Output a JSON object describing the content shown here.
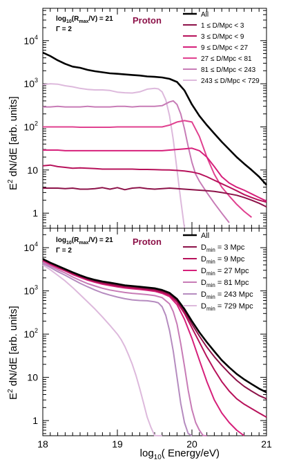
{
  "figure": {
    "xlabel_prefix": "log",
    "xlabel_sub": "10",
    "xlabel_main": "( Energy/eV)",
    "ylabel_prefix": "E",
    "ylabel_sup": "2",
    "ylabel_main": " dN/dE [arb. units]"
  },
  "chart_data": [
    {
      "type": "line",
      "title": "Proton",
      "annotation_line1_base": "log",
      "annotation_line1_sub": "10",
      "annotation_line1_rest": "(R",
      "annotation_line1_sub2": "max",
      "annotation_line1_end": "/V) = 21",
      "annotation_line2": "Γ = 2",
      "xlim": [
        18,
        21
      ],
      "ylim_log10": [
        -0.35,
        4.75
      ],
      "y_scale": "log",
      "legend_position": "top-right",
      "x_tick_labels": [
        "18",
        "19",
        "20",
        "21"
      ],
      "y_tick_labels": [
        {
          "base": "1",
          "exp": ""
        },
        {
          "base": "10",
          "exp": ""
        },
        {
          "base": "10",
          "exp": "2"
        },
        {
          "base": "10",
          "exp": "3"
        },
        {
          "base": "10",
          "exp": "4"
        }
      ],
      "series": [
        {
          "name": "All",
          "color": "#000000",
          "x": [
            18,
            18.1,
            18.2,
            18.3,
            18.4,
            18.5,
            18.6,
            18.7,
            18.8,
            18.9,
            19.0,
            19.1,
            19.2,
            19.3,
            19.4,
            19.5,
            19.6,
            19.7,
            19.8,
            19.9,
            20.0,
            20.1,
            20.2,
            20.3,
            20.4,
            20.5,
            20.6,
            20.7,
            20.8,
            20.9,
            21.0
          ],
          "y": [
            5300,
            4400,
            3500,
            2900,
            2500,
            2350,
            2100,
            1950,
            1850,
            1750,
            1700,
            1650,
            1600,
            1550,
            1480,
            1450,
            1400,
            1300,
            1100,
            700,
            330,
            180,
            110,
            70,
            45,
            30,
            20,
            14,
            10,
            7,
            4.5
          ]
        },
        {
          "name": "1 ≤ D/Mpc < 3",
          "color": "#8c1148",
          "x": [
            18,
            18.1,
            18.2,
            18.3,
            18.4,
            18.5,
            18.6,
            18.7,
            18.8,
            18.9,
            19.0,
            19.1,
            19.2,
            19.3,
            19.4,
            19.5,
            19.6,
            19.7,
            19.8,
            19.9,
            20.0,
            20.1,
            20.2,
            20.3,
            20.4,
            20.5,
            20.6,
            20.7,
            20.8,
            20.9,
            21.0
          ],
          "y": [
            3.8,
            3.8,
            3.8,
            3.7,
            3.8,
            3.6,
            3.6,
            3.7,
            3.9,
            3.6,
            3.9,
            3.5,
            3.8,
            3.9,
            3.7,
            3.6,
            3.7,
            3.8,
            3.7,
            3.6,
            3.5,
            3.4,
            3.3,
            3.2,
            3.0,
            2.8,
            2.6,
            2.3,
            2.0,
            1.7,
            1.4
          ]
        },
        {
          "name": "3 ≤ D/Mpc < 9",
          "color": "#b7115a",
          "x": [
            18,
            18.1,
            18.2,
            18.3,
            18.4,
            18.5,
            18.6,
            18.7,
            18.8,
            18.9,
            19.0,
            19.1,
            19.2,
            19.3,
            19.4,
            19.5,
            19.6,
            19.7,
            19.8,
            19.9,
            20.0,
            20.1,
            20.2,
            20.3,
            20.4,
            20.5,
            20.6,
            20.7,
            20.8,
            20.9,
            21.0
          ],
          "y": [
            12.5,
            13,
            12,
            11.5,
            11,
            11.2,
            11,
            10.8,
            10.5,
            10.5,
            10.5,
            10.5,
            10.5,
            10.3,
            10.3,
            10.2,
            10.1,
            10,
            9.8,
            9.5,
            9,
            8.2,
            7,
            5.8,
            4.8,
            4,
            3.3,
            2.7,
            2.3,
            2,
            1.8
          ]
        },
        {
          "name": "9 ≤ D/Mpc < 27",
          "color": "#d61f7a",
          "x": [
            18,
            18.1,
            18.2,
            18.3,
            18.4,
            18.5,
            18.6,
            18.7,
            18.8,
            18.9,
            19.0,
            19.1,
            19.2,
            19.3,
            19.4,
            19.5,
            19.6,
            19.7,
            19.8,
            19.9,
            20.0,
            20.1,
            20.2,
            20.3,
            20.4,
            20.5,
            20.6,
            20.7,
            20.8,
            20.9,
            21.0
          ],
          "y": [
            29,
            29,
            29,
            28,
            28,
            28,
            28,
            28,
            28,
            28,
            28,
            28,
            28,
            28,
            28,
            28,
            28,
            29,
            30,
            31,
            32,
            28,
            20,
            12,
            7,
            5,
            4,
            3.4,
            2.8,
            2.3,
            1.9
          ]
        },
        {
          "name": "27 ≤ D/Mpc < 81",
          "color": "#e0408f",
          "x": [
            18,
            18.1,
            18.2,
            18.3,
            18.4,
            18.5,
            18.6,
            18.7,
            18.8,
            18.9,
            19.0,
            19.1,
            19.2,
            19.3,
            19.4,
            19.5,
            19.6,
            19.7,
            19.8,
            19.9,
            20.0,
            20.1,
            20.2,
            20.3,
            20.4,
            20.5,
            20.6,
            20.7,
            20.8
          ],
          "y": [
            100,
            100,
            100,
            100,
            100,
            98,
            98,
            98,
            98,
            98,
            100,
            100,
            100,
            100,
            100,
            100,
            100,
            110,
            130,
            140,
            130,
            60,
            20,
            8,
            4,
            2.5,
            1.6,
            1.1,
            0.8
          ]
        },
        {
          "name": "81 ≤ D/Mpc < 243",
          "color": "#c77bb6",
          "x": [
            18,
            18.1,
            18.2,
            18.3,
            18.4,
            18.5,
            18.6,
            18.7,
            18.8,
            18.9,
            19.0,
            19.1,
            19.2,
            19.3,
            19.4,
            19.5,
            19.6,
            19.7,
            19.75,
            19.8,
            19.85,
            19.9,
            19.95,
            20.0,
            20.05,
            20.1,
            20.2,
            20.3,
            20.4,
            20.5
          ],
          "y": [
            290,
            290,
            300,
            290,
            290,
            290,
            300,
            290,
            290,
            290,
            300,
            300,
            290,
            300,
            300,
            300,
            310,
            380,
            400,
            330,
            200,
            90,
            35,
            15,
            8,
            5.5,
            3,
            1.7,
            1.0,
            0.6
          ]
        },
        {
          "name": "243 ≤ D/Mpc < 729",
          "color": "#ddb9dc",
          "x": [
            18,
            18.1,
            18.2,
            18.3,
            18.4,
            18.5,
            18.6,
            18.7,
            18.8,
            18.9,
            19.0,
            19.1,
            19.2,
            19.3,
            19.4,
            19.5,
            19.55,
            19.6,
            19.65,
            19.7,
            19.75,
            19.8,
            19.85,
            19.9
          ],
          "y": [
            950,
            1000,
            980,
            900,
            850,
            780,
            740,
            720,
            720,
            700,
            640,
            620,
            610,
            650,
            750,
            780,
            760,
            650,
            420,
            180,
            50,
            10,
            2.0,
            0.4
          ]
        }
      ]
    },
    {
      "type": "line",
      "title": "Proton",
      "annotation_line1_base": "log",
      "annotation_line1_sub": "10",
      "annotation_line1_rest": "(R",
      "annotation_line1_sub2": "max",
      "annotation_line1_end": "/V) = 21",
      "annotation_line2": "Γ = 2",
      "xlim": [
        18,
        21
      ],
      "ylim_log10": [
        -0.35,
        4.45
      ],
      "y_scale": "log",
      "legend_position": "top-right",
      "x_tick_labels": [
        "18",
        "19",
        "20",
        "21"
      ],
      "y_tick_labels": [
        {
          "base": "1",
          "exp": ""
        },
        {
          "base": "10",
          "exp": ""
        },
        {
          "base": "10",
          "exp": "2"
        },
        {
          "base": "10",
          "exp": "3"
        },
        {
          "base": "10",
          "exp": "4"
        }
      ],
      "series": [
        {
          "name": "All",
          "legend_base": "All",
          "legend_sub": "",
          "legend_rest": "",
          "color": "#000000",
          "x": [
            18,
            18.1,
            18.2,
            18.3,
            18.4,
            18.5,
            18.6,
            18.7,
            18.8,
            18.9,
            19.0,
            19.1,
            19.2,
            19.3,
            19.4,
            19.5,
            19.6,
            19.7,
            19.8,
            19.9,
            20.0,
            20.1,
            20.2,
            20.3,
            20.4,
            20.5,
            20.6,
            20.7,
            20.8,
            20.9,
            21.0
          ],
          "y": [
            5500,
            4500,
            3800,
            3200,
            2700,
            2300,
            2000,
            1800,
            1650,
            1550,
            1450,
            1350,
            1300,
            1250,
            1200,
            1150,
            1050,
            900,
            650,
            380,
            200,
            110,
            65,
            40,
            25,
            17,
            12,
            9,
            7,
            5.5,
            4.5
          ]
        },
        {
          "name": "D_min = 3 Mpc",
          "legend_base": "D",
          "legend_sub": "min",
          "legend_rest": " = 3 Mpc",
          "color": "#8c1148",
          "x": [
            18,
            18.1,
            18.2,
            18.3,
            18.4,
            18.5,
            18.6,
            18.7,
            18.8,
            18.9,
            19.0,
            19.1,
            19.2,
            19.3,
            19.4,
            19.5,
            19.6,
            19.7,
            19.8,
            19.9,
            20.0,
            20.1,
            20.2,
            20.3,
            20.4,
            20.5,
            20.6,
            20.7,
            20.8,
            20.9,
            21.0
          ],
          "y": [
            5400,
            4400,
            3700,
            3100,
            2600,
            2200,
            1900,
            1700,
            1550,
            1450,
            1350,
            1280,
            1230,
            1180,
            1130,
            1080,
            980,
            850,
            600,
            340,
            170,
            90,
            50,
            30,
            19,
            12.5,
            8.5,
            6.2,
            4.8,
            3.8,
            3.2
          ]
        },
        {
          "name": "D_min = 9 Mpc",
          "legend_base": "D",
          "legend_sub": "min",
          "legend_rest": " = 9 Mpc",
          "color": "#b7115a",
          "x": [
            18,
            18.1,
            18.2,
            18.3,
            18.4,
            18.5,
            18.6,
            18.7,
            18.8,
            18.9,
            19.0,
            19.1,
            19.2,
            19.3,
            19.4,
            19.5,
            19.6,
            19.7,
            19.8,
            19.9,
            20.0,
            20.1,
            20.2,
            20.3,
            20.4,
            20.5,
            20.6,
            20.7,
            20.8,
            20.9,
            21.0
          ],
          "y": [
            5200,
            4300,
            3600,
            3000,
            2500,
            2150,
            1850,
            1650,
            1500,
            1400,
            1300,
            1230,
            1180,
            1130,
            1080,
            1030,
            930,
            800,
            550,
            300,
            140,
            65,
            30,
            15,
            8,
            4.8,
            3.2,
            2.4,
            1.9,
            1.5,
            1.2
          ]
        },
        {
          "name": "D_min = 27 Mpc",
          "legend_base": "D",
          "legend_sub": "min",
          "legend_rest": " = 27 Mpc",
          "color": "#d61f7a",
          "x": [
            18,
            18.1,
            18.2,
            18.3,
            18.4,
            18.5,
            18.6,
            18.7,
            18.8,
            18.9,
            19.0,
            19.1,
            19.2,
            19.3,
            19.4,
            19.5,
            19.6,
            19.7,
            19.8,
            19.9,
            20.0,
            20.1,
            20.2,
            20.3,
            20.4,
            20.5,
            20.6,
            20.7
          ],
          "y": [
            5000,
            4100,
            3400,
            2900,
            2400,
            2050,
            1780,
            1580,
            1430,
            1330,
            1240,
            1170,
            1120,
            1080,
            1030,
            980,
            880,
            740,
            480,
            220,
            80,
            25,
            8,
            3,
            1.5,
            0.9,
            0.6,
            0.4
          ]
        },
        {
          "name": "D_min = 81 Mpc",
          "legend_base": "D",
          "legend_sub": "min",
          "legend_rest": " = 81 Mpc",
          "color": "#c77bb6",
          "x": [
            18,
            18.1,
            18.2,
            18.3,
            18.4,
            18.5,
            18.6,
            18.7,
            18.8,
            18.9,
            19.0,
            19.1,
            19.2,
            19.3,
            19.4,
            19.5,
            19.6,
            19.7,
            19.75,
            19.8,
            19.85,
            19.9,
            19.95,
            20.0,
            20.05,
            20.1,
            20.15,
            20.2
          ],
          "y": [
            4600,
            3800,
            3100,
            2600,
            2100,
            1750,
            1480,
            1300,
            1150,
            1050,
            980,
            920,
            880,
            850,
            820,
            780,
            700,
            500,
            330,
            170,
            60,
            18,
            5,
            1.8,
            0.9,
            0.6,
            0.45,
            0.35
          ]
        },
        {
          "name": "D_min = 243 Mpc",
          "legend_base": "D",
          "legend_sub": "min",
          "legend_rest": " = 243 Mpc",
          "color": "#b58bbf",
          "x": [
            18,
            18.1,
            18.2,
            18.3,
            18.4,
            18.5,
            18.6,
            18.7,
            18.8,
            18.9,
            19.0,
            19.1,
            19.2,
            19.3,
            19.4,
            19.5,
            19.55,
            19.6,
            19.65,
            19.7,
            19.75,
            19.8,
            19.85,
            19.9,
            19.95,
            20.0
          ],
          "y": [
            4300,
            3500,
            2800,
            2300,
            1850,
            1500,
            1250,
            1050,
            900,
            800,
            720,
            660,
            620,
            600,
            590,
            560,
            530,
            430,
            270,
            120,
            40,
            10,
            2.5,
            0.9,
            0.5,
            0.35
          ]
        },
        {
          "name": "D_min = 729 Mpc",
          "legend_base": "D",
          "legend_sub": "min",
          "legend_rest": " = 729 Mpc",
          "color": "#ddb9dc",
          "x": [
            18,
            18.1,
            18.2,
            18.3,
            18.4,
            18.5,
            18.6,
            18.7,
            18.8,
            18.9,
            19.0,
            19.05,
            19.1,
            19.15,
            19.2,
            19.25,
            19.3,
            19.35,
            19.4,
            19.45,
            19.5,
            19.55,
            19.6
          ],
          "y": [
            4000,
            3100,
            2300,
            1700,
            1200,
            820,
            560,
            380,
            250,
            160,
            100,
            75,
            52,
            33,
            20,
            11,
            5.5,
            2.6,
            1.2,
            0.7,
            0.45,
            0.35,
            0.3
          ]
        }
      ]
    }
  ]
}
